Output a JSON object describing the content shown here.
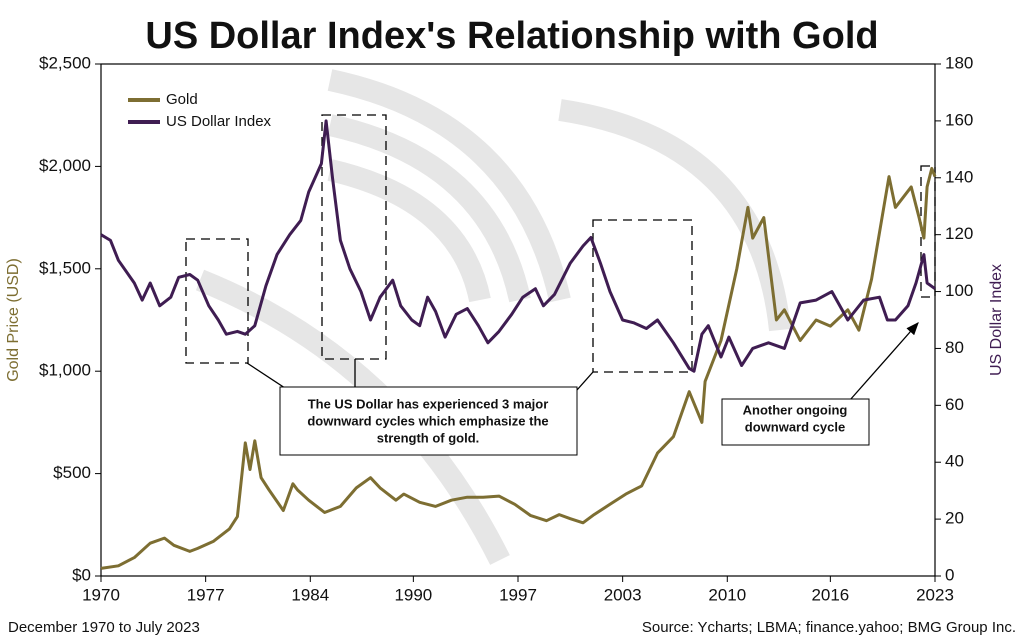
{
  "chart_data": {
    "type": "line",
    "title": "US Dollar Index's Relationship with Gold",
    "ylabel": "Gold Price (USD)",
    "y2label": "US Dollar Index",
    "xlim": [
      1970.9,
      2023.5
    ],
    "xticks": [
      {
        "value": 1970.9,
        "label": "1970"
      },
      {
        "value": 1977.5,
        "label": "1977"
      },
      {
        "value": 1984.1,
        "label": "1984"
      },
      {
        "value": 1990.6,
        "label": "1990"
      },
      {
        "value": 1997.2,
        "label": "1997"
      },
      {
        "value": 2003.8,
        "label": "2003"
      },
      {
        "value": 2010.4,
        "label": "2010"
      },
      {
        "value": 2016.9,
        "label": "2016"
      },
      {
        "value": 2023.5,
        "label": "2023"
      }
    ],
    "ylim": [
      0,
      2500
    ],
    "yticks": [
      {
        "value": 0,
        "label": "$0"
      },
      {
        "value": 500,
        "label": "$500"
      },
      {
        "value": 1000,
        "label": "$1,000"
      },
      {
        "value": 1500,
        "label": "$1,500"
      },
      {
        "value": 2000,
        "label": "$2,000"
      },
      {
        "value": 2500,
        "label": "$2,500"
      }
    ],
    "y2lim": [
      0,
      180
    ],
    "y2ticks": [
      0,
      20,
      40,
      60,
      80,
      100,
      120,
      140,
      160,
      180
    ],
    "series": [
      {
        "name": "Gold",
        "color": "#7d6e32",
        "x": [
          1970.9,
          1972,
          1973,
          1974,
          1974.9,
          1975.5,
          1976.5,
          1977,
          1978,
          1979,
          1979.5,
          1980.0,
          1980.3,
          1980.6,
          1981,
          1981.5,
          1982.4,
          1983,
          1983.3,
          1984,
          1985,
          1986,
          1987,
          1987.9,
          1988.5,
          1989.5,
          1990,
          1991,
          1992,
          1993,
          1994,
          1995,
          1996,
          1997,
          1998,
          1999,
          1999.8,
          2000.5,
          2001.3,
          2002,
          2003,
          2004,
          2005,
          2006,
          2007,
          2008,
          2008.8,
          2009,
          2010,
          2011,
          2011.7,
          2012,
          2012.7,
          2013.5,
          2014,
          2015,
          2016,
          2016.9,
          2018,
          2018.7,
          2019.5,
          2020.6,
          2021,
          2022,
          2022.5,
          2022.8,
          2023,
          2023.3,
          2023.5
        ],
        "values": [
          37,
          50,
          90,
          160,
          185,
          150,
          120,
          135,
          170,
          230,
          290,
          650,
          520,
          660,
          480,
          420,
          320,
          450,
          420,
          370,
          310,
          340,
          430,
          480,
          430,
          370,
          400,
          360,
          340,
          370,
          385,
          385,
          390,
          350,
          295,
          270,
          300,
          280,
          260,
          300,
          350,
          400,
          440,
          600,
          680,
          900,
          750,
          950,
          1150,
          1500,
          1800,
          1650,
          1750,
          1250,
          1300,
          1150,
          1250,
          1220,
          1300,
          1200,
          1450,
          1950,
          1800,
          1900,
          1750,
          1650,
          1900,
          1990,
          1950
        ]
      },
      {
        "name": "US Dollar Index",
        "color": "#3f1d52",
        "axis": "y2",
        "x": [
          1970.9,
          1971.5,
          1972,
          1973,
          1973.5,
          1974,
          1974.6,
          1975.3,
          1975.8,
          1976.5,
          1977,
          1977.7,
          1978.3,
          1978.8,
          1979.5,
          1980,
          1980.6,
          1981.3,
          1982,
          1982.8,
          1983.5,
          1984,
          1984.8,
          1985.1,
          1985.5,
          1986,
          1986.6,
          1987.3,
          1987.9,
          1988.5,
          1989.3,
          1989.8,
          1990.5,
          1991,
          1991.5,
          1992,
          1992.6,
          1993.3,
          1994,
          1994.7,
          1995.3,
          1996,
          1996.8,
          1997.5,
          1998.3,
          1998.8,
          1999.5,
          2000.5,
          2001.3,
          2001.8,
          2002.4,
          2003,
          2003.8,
          2004.5,
          2005.3,
          2006,
          2007,
          2008,
          2008.3,
          2008.8,
          2009.2,
          2010,
          2010.5,
          2011.3,
          2012,
          2013,
          2014,
          2015,
          2016,
          2017,
          2018,
          2019,
          2020,
          2020.5,
          2021,
          2021.8,
          2022.3,
          2022.8,
          2023,
          2023.5
        ],
        "values": [
          120,
          118,
          111,
          103,
          97,
          103,
          95,
          98,
          105,
          106,
          104,
          95,
          90,
          85,
          86,
          85,
          88,
          102,
          113,
          120,
          125,
          135,
          145,
          160,
          140,
          118,
          108,
          100,
          90,
          98,
          104,
          95,
          90,
          88,
          98,
          93,
          84,
          92,
          94,
          88,
          82,
          86,
          92,
          98,
          101,
          95,
          99,
          110,
          116,
          119,
          110,
          100,
          90,
          89,
          87,
          90,
          82,
          73,
          72,
          85,
          88,
          77,
          84,
          74,
          80,
          82,
          80,
          96,
          97,
          100,
          90,
          97,
          98,
          90,
          90,
          95,
          103,
          113,
          103,
          101
        ]
      }
    ],
    "annotations": [
      {
        "lines": [
          "The US Dollar has experienced 3 major",
          "downward cycles which emphasize the",
          "strength of gold."
        ]
      },
      {
        "lines": [
          "Another ongoing",
          "downward cycle"
        ]
      }
    ],
    "footer_left": "December 1970 to July 2023",
    "footer_right": "Source: Ycharts; LBMA; finance.yahoo; BMG Group Inc."
  }
}
